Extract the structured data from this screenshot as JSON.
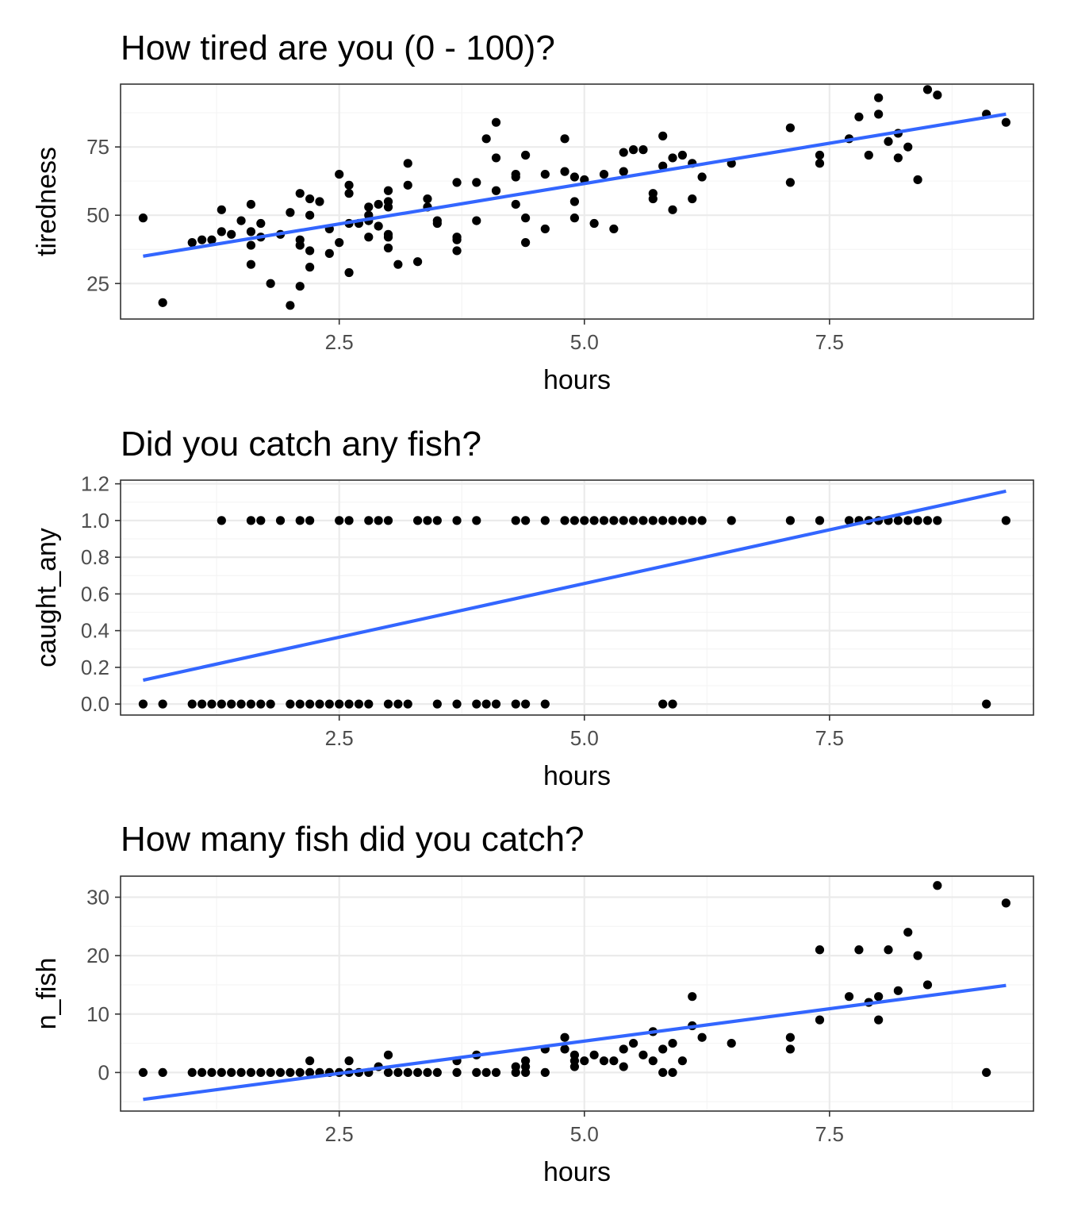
{
  "colors": {
    "points": "#000000",
    "fit_line": "#3366FF",
    "grid_major": "#ebebeb",
    "grid_minor": "#f5f5f5",
    "panel_border": "#333333",
    "tick_label": "#4d4d4d"
  },
  "chart_data": [
    {
      "type": "scatter",
      "title": "How tired are you (0 - 100)?",
      "xlabel": "hours",
      "ylabel": "tiredness",
      "xlim": [
        0.27,
        9.58
      ],
      "ylim": [
        12,
        98
      ],
      "x_ticks": [
        2.5,
        5.0,
        7.5
      ],
      "x_tick_labels": [
        "2.5",
        "5.0",
        "7.5"
      ],
      "y_ticks": [
        25,
        50,
        75
      ],
      "y_tick_labels": [
        "25",
        "50",
        "75"
      ],
      "grid": true,
      "fit_line": {
        "x": [
          0.5,
          9.3
        ],
        "y": [
          35,
          87
        ]
      },
      "points": [
        [
          0.5,
          49
        ],
        [
          0.7,
          18
        ],
        [
          1.0,
          40
        ],
        [
          1.1,
          41
        ],
        [
          1.2,
          41
        ],
        [
          1.3,
          52
        ],
        [
          1.3,
          44
        ],
        [
          1.4,
          43
        ],
        [
          1.5,
          48
        ],
        [
          1.6,
          54
        ],
        [
          1.6,
          44
        ],
        [
          1.6,
          39
        ],
        [
          1.6,
          32
        ],
        [
          1.7,
          42
        ],
        [
          1.7,
          47
        ],
        [
          1.8,
          25
        ],
        [
          1.9,
          43
        ],
        [
          2.0,
          17
        ],
        [
          2.0,
          51
        ],
        [
          2.1,
          58
        ],
        [
          2.1,
          41
        ],
        [
          2.1,
          39
        ],
        [
          2.1,
          24
        ],
        [
          2.2,
          56
        ],
        [
          2.2,
          50
        ],
        [
          2.2,
          37
        ],
        [
          2.2,
          31
        ],
        [
          2.3,
          55
        ],
        [
          2.4,
          45
        ],
        [
          2.4,
          36
        ],
        [
          2.5,
          65
        ],
        [
          2.5,
          40
        ],
        [
          2.6,
          61
        ],
        [
          2.6,
          58
        ],
        [
          2.6,
          47
        ],
        [
          2.6,
          29
        ],
        [
          2.7,
          47
        ],
        [
          2.8,
          53
        ],
        [
          2.8,
          50
        ],
        [
          2.8,
          48
        ],
        [
          2.8,
          42
        ],
        [
          2.9,
          54
        ],
        [
          2.9,
          46
        ],
        [
          3.0,
          59
        ],
        [
          3.0,
          55
        ],
        [
          3.0,
          53
        ],
        [
          3.0,
          43
        ],
        [
          3.0,
          42
        ],
        [
          3.0,
          38
        ],
        [
          3.1,
          32
        ],
        [
          3.2,
          69
        ],
        [
          3.2,
          61
        ],
        [
          3.3,
          33
        ],
        [
          3.4,
          56
        ],
        [
          3.4,
          53
        ],
        [
          3.5,
          48
        ],
        [
          3.5,
          47
        ],
        [
          3.7,
          62
        ],
        [
          3.7,
          42
        ],
        [
          3.7,
          41
        ],
        [
          3.7,
          37
        ],
        [
          3.9,
          62
        ],
        [
          3.9,
          48
        ],
        [
          4.0,
          78
        ],
        [
          4.1,
          84
        ],
        [
          4.1,
          71
        ],
        [
          4.1,
          59
        ],
        [
          4.3,
          65
        ],
        [
          4.3,
          64
        ],
        [
          4.3,
          54
        ],
        [
          4.4,
          72
        ],
        [
          4.4,
          49
        ],
        [
          4.4,
          40
        ],
        [
          4.6,
          65
        ],
        [
          4.6,
          45
        ],
        [
          4.8,
          78
        ],
        [
          4.8,
          66
        ],
        [
          4.9,
          64
        ],
        [
          4.9,
          55
        ],
        [
          4.9,
          49
        ],
        [
          5.0,
          63
        ],
        [
          5.1,
          47
        ],
        [
          5.2,
          65
        ],
        [
          5.3,
          45
        ],
        [
          5.4,
          73
        ],
        [
          5.4,
          66
        ],
        [
          5.5,
          74
        ],
        [
          5.6,
          74
        ],
        [
          5.7,
          58
        ],
        [
          5.7,
          56
        ],
        [
          5.8,
          79
        ],
        [
          5.8,
          68
        ],
        [
          5.9,
          71
        ],
        [
          5.9,
          52
        ],
        [
          6.0,
          72
        ],
        [
          6.1,
          69
        ],
        [
          6.1,
          56
        ],
        [
          6.2,
          64
        ],
        [
          6.5,
          69
        ],
        [
          7.1,
          82
        ],
        [
          7.1,
          62
        ],
        [
          7.4,
          72
        ],
        [
          7.4,
          69
        ],
        [
          7.7,
          78
        ],
        [
          7.8,
          86
        ],
        [
          7.9,
          72
        ],
        [
          8.0,
          93
        ],
        [
          8.0,
          87
        ],
        [
          8.1,
          77
        ],
        [
          8.2,
          80
        ],
        [
          8.2,
          71
        ],
        [
          8.3,
          75
        ],
        [
          8.4,
          63
        ],
        [
          8.5,
          96
        ],
        [
          8.6,
          94
        ],
        [
          9.1,
          87
        ],
        [
          9.3,
          84
        ]
      ]
    },
    {
      "type": "scatter",
      "title": "Did you catch any fish?",
      "xlabel": "hours",
      "ylabel": "caught_any",
      "xlim": [
        0.27,
        9.58
      ],
      "ylim": [
        -0.06,
        1.22
      ],
      "x_ticks": [
        2.5,
        5.0,
        7.5
      ],
      "x_tick_labels": [
        "2.5",
        "5.0",
        "7.5"
      ],
      "y_ticks": [
        0.0,
        0.2,
        0.4,
        0.6,
        0.8,
        1.0,
        1.2
      ],
      "y_tick_labels": [
        "0.0",
        "0.2",
        "0.4",
        "0.6",
        "0.8",
        "1.0",
        "1.2"
      ],
      "grid": true,
      "fit_line": {
        "x": [
          0.5,
          9.3
        ],
        "y": [
          0.13,
          1.16
        ]
      },
      "points": [
        [
          0.5,
          0
        ],
        [
          0.7,
          0
        ],
        [
          1.0,
          0
        ],
        [
          1.1,
          0
        ],
        [
          1.2,
          0
        ],
        [
          1.3,
          0
        ],
        [
          1.4,
          0
        ],
        [
          1.5,
          0
        ],
        [
          1.6,
          0
        ],
        [
          1.7,
          0
        ],
        [
          1.8,
          0
        ],
        [
          2.0,
          0
        ],
        [
          2.1,
          0
        ],
        [
          2.2,
          0
        ],
        [
          2.3,
          0
        ],
        [
          2.4,
          0
        ],
        [
          2.5,
          0
        ],
        [
          2.6,
          0
        ],
        [
          2.7,
          0
        ],
        [
          2.8,
          0
        ],
        [
          3.0,
          0
        ],
        [
          3.1,
          0
        ],
        [
          3.2,
          0
        ],
        [
          3.5,
          0
        ],
        [
          3.7,
          0
        ],
        [
          3.9,
          0
        ],
        [
          4.0,
          0
        ],
        [
          4.1,
          0
        ],
        [
          4.3,
          0
        ],
        [
          4.4,
          0
        ],
        [
          4.6,
          0
        ],
        [
          5.8,
          0
        ],
        [
          5.9,
          0
        ],
        [
          9.1,
          0
        ],
        [
          1.3,
          1
        ],
        [
          1.6,
          1
        ],
        [
          1.7,
          1
        ],
        [
          1.9,
          1
        ],
        [
          2.1,
          1
        ],
        [
          2.2,
          1
        ],
        [
          2.5,
          1
        ],
        [
          2.6,
          1
        ],
        [
          2.8,
          1
        ],
        [
          2.9,
          1
        ],
        [
          3.0,
          1
        ],
        [
          3.3,
          1
        ],
        [
          3.4,
          1
        ],
        [
          3.5,
          1
        ],
        [
          3.7,
          1
        ],
        [
          3.9,
          1
        ],
        [
          4.3,
          1
        ],
        [
          4.4,
          1
        ],
        [
          4.6,
          1
        ],
        [
          4.8,
          1
        ],
        [
          4.9,
          1
        ],
        [
          5.0,
          1
        ],
        [
          5.1,
          1
        ],
        [
          5.2,
          1
        ],
        [
          5.3,
          1
        ],
        [
          5.4,
          1
        ],
        [
          5.5,
          1
        ],
        [
          5.6,
          1
        ],
        [
          5.7,
          1
        ],
        [
          5.8,
          1
        ],
        [
          5.9,
          1
        ],
        [
          6.0,
          1
        ],
        [
          6.1,
          1
        ],
        [
          6.2,
          1
        ],
        [
          6.5,
          1
        ],
        [
          7.1,
          1
        ],
        [
          7.4,
          1
        ],
        [
          7.7,
          1
        ],
        [
          7.8,
          1
        ],
        [
          7.9,
          1
        ],
        [
          8.0,
          1
        ],
        [
          8.1,
          1
        ],
        [
          8.2,
          1
        ],
        [
          8.3,
          1
        ],
        [
          8.4,
          1
        ],
        [
          8.5,
          1
        ],
        [
          8.6,
          1
        ],
        [
          9.3,
          1
        ]
      ]
    },
    {
      "type": "scatter",
      "title": "How many fish did you catch?",
      "xlabel": "hours",
      "ylabel": "n_fish",
      "xlim": [
        0.27,
        9.58
      ],
      "ylim": [
        -6.6,
        33.6
      ],
      "x_ticks": [
        2.5,
        5.0,
        7.5
      ],
      "x_tick_labels": [
        "2.5",
        "5.0",
        "7.5"
      ],
      "y_ticks": [
        0,
        10,
        20,
        30
      ],
      "y_tick_labels": [
        "0",
        "10",
        "20",
        "30"
      ],
      "grid": true,
      "fit_line": {
        "x": [
          0.5,
          9.3
        ],
        "y": [
          -4.6,
          14.9
        ]
      },
      "points": [
        [
          0.5,
          0
        ],
        [
          0.7,
          0
        ],
        [
          1.0,
          0
        ],
        [
          1.1,
          0
        ],
        [
          1.2,
          0
        ],
        [
          1.3,
          0
        ],
        [
          1.4,
          0
        ],
        [
          1.5,
          0
        ],
        [
          1.6,
          0
        ],
        [
          1.7,
          0
        ],
        [
          1.8,
          0
        ],
        [
          1.9,
          0
        ],
        [
          2.0,
          0
        ],
        [
          2.1,
          0
        ],
        [
          2.2,
          0
        ],
        [
          2.2,
          2
        ],
        [
          2.3,
          0
        ],
        [
          2.4,
          0
        ],
        [
          2.5,
          0
        ],
        [
          2.6,
          0
        ],
        [
          2.6,
          2
        ],
        [
          2.7,
          0
        ],
        [
          2.8,
          0
        ],
        [
          2.9,
          1
        ],
        [
          3.0,
          0
        ],
        [
          3.0,
          3
        ],
        [
          3.1,
          0
        ],
        [
          3.2,
          0
        ],
        [
          3.3,
          0
        ],
        [
          3.4,
          0
        ],
        [
          3.5,
          0
        ],
        [
          3.7,
          0
        ],
        [
          3.7,
          2
        ],
        [
          3.9,
          0
        ],
        [
          3.9,
          3
        ],
        [
          4.0,
          0
        ],
        [
          4.1,
          0
        ],
        [
          4.3,
          0
        ],
        [
          4.3,
          1
        ],
        [
          4.4,
          0
        ],
        [
          4.4,
          1
        ],
        [
          4.4,
          2
        ],
        [
          4.6,
          0
        ],
        [
          4.6,
          4
        ],
        [
          4.8,
          6
        ],
        [
          4.8,
          4
        ],
        [
          4.9,
          3
        ],
        [
          4.9,
          2
        ],
        [
          4.9,
          1
        ],
        [
          5.0,
          2
        ],
        [
          5.1,
          3
        ],
        [
          5.2,
          2
        ],
        [
          5.3,
          2
        ],
        [
          5.4,
          4
        ],
        [
          5.4,
          1
        ],
        [
          5.5,
          5
        ],
        [
          5.6,
          3
        ],
        [
          5.7,
          7
        ],
        [
          5.7,
          2
        ],
        [
          5.8,
          4
        ],
        [
          5.8,
          0
        ],
        [
          5.9,
          5
        ],
        [
          5.9,
          0
        ],
        [
          6.0,
          2
        ],
        [
          6.1,
          13
        ],
        [
          6.1,
          8
        ],
        [
          6.2,
          6
        ],
        [
          6.5,
          5
        ],
        [
          7.1,
          6
        ],
        [
          7.1,
          4
        ],
        [
          7.4,
          21
        ],
        [
          7.4,
          9
        ],
        [
          7.7,
          13
        ],
        [
          7.8,
          21
        ],
        [
          7.9,
          12
        ],
        [
          8.0,
          13
        ],
        [
          8.0,
          9
        ],
        [
          8.1,
          21
        ],
        [
          8.2,
          14
        ],
        [
          8.3,
          24
        ],
        [
          8.4,
          20
        ],
        [
          8.5,
          15
        ],
        [
          8.6,
          32
        ],
        [
          9.1,
          0
        ],
        [
          9.3,
          29
        ]
      ]
    }
  ]
}
